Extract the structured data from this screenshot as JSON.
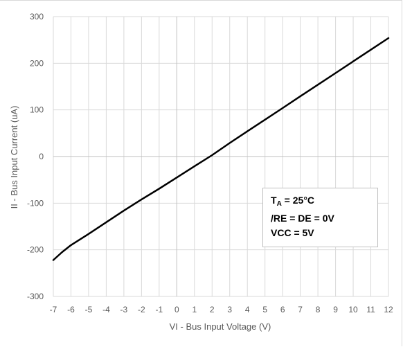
{
  "chart_data": {
    "type": "line",
    "xlabel": "VI - Bus Input Voltage (V)",
    "ylabel": "II - Bus Input Current (uA)",
    "xlim": [
      -7,
      12
    ],
    "ylim": [
      -300,
      300
    ],
    "x_ticks": [
      "-7",
      "-6",
      "-5",
      "-4",
      "-3",
      "-2",
      "-1",
      "0",
      "1",
      "2",
      "3",
      "4",
      "5",
      "6",
      "7",
      "8",
      "9",
      "10",
      "11",
      "12"
    ],
    "y_ticks": [
      "-300",
      "-200",
      "-100",
      "0",
      "100",
      "200",
      "300"
    ],
    "grid": true,
    "series": [
      {
        "color": "#000000",
        "x": [
          -7,
          -6.5,
          -6,
          -5,
          -4,
          -3,
          -2,
          -1,
          0,
          1,
          2,
          3,
          4,
          5,
          6,
          7,
          8,
          9,
          10,
          11,
          12
        ],
        "y": [
          -222,
          -205,
          -190,
          -166,
          -141,
          -116,
          -92,
          -69,
          -45,
          -21,
          3,
          29,
          54,
          79,
          104,
          129,
          154,
          179,
          204,
          229,
          254
        ]
      }
    ],
    "annotation": {
      "line1_main": "T",
      "line1_sub": "A",
      "line1_rest": " = 25°C",
      "line2": "/RE = DE = 0V",
      "line3": "VCC = 5V"
    }
  }
}
